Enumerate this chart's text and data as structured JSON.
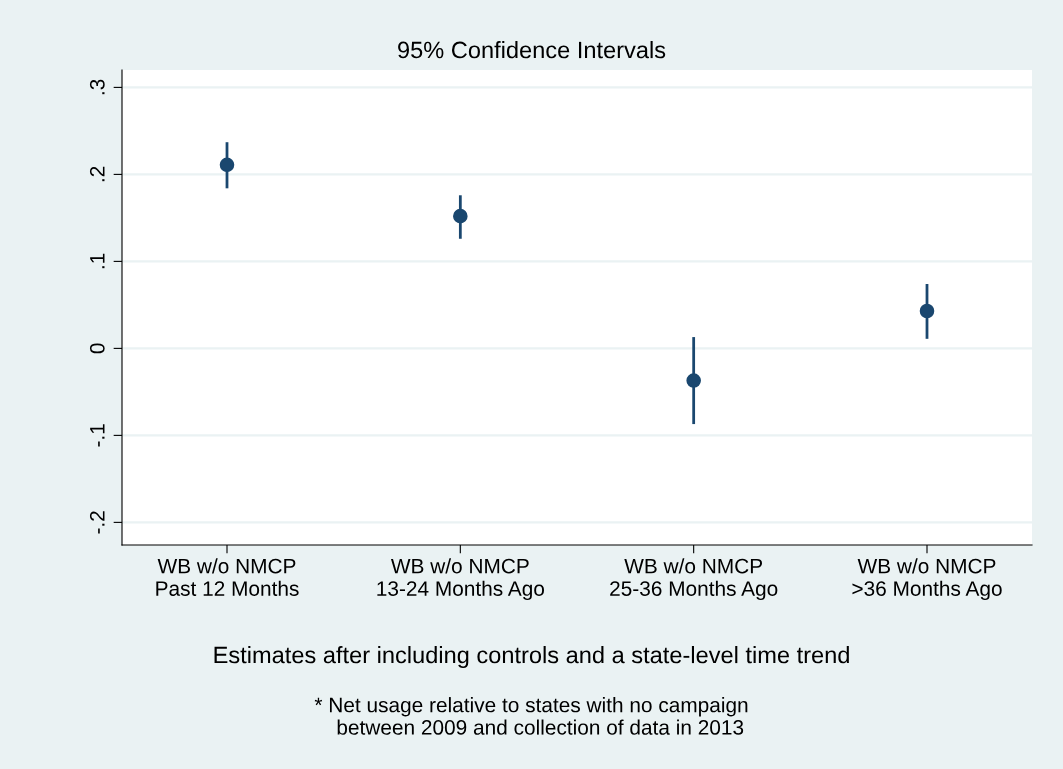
{
  "chart_data": {
    "type": "scatter",
    "title": "95% Confidence Intervals",
    "xlabel": "Estimates after including controls and a state-level time trend",
    "categories": [
      "WB w/o NMCP\nPast 12 Months",
      "WB w/o NMCP\n13-24 Months Ago",
      "WB w/o NMCP\n25-36 Months Ago",
      "WB w/o NMCP\n>36 Months Ago"
    ],
    "series": [
      {
        "color": "#1a476f",
        "values": [
          0.211,
          0.152,
          -0.037,
          0.043
        ],
        "errors": [
          [
            0.184,
            0.237
          ],
          [
            0.126,
            0.176
          ],
          [
            -0.087,
            0.013
          ],
          [
            0.011,
            0.074
          ]
        ]
      }
    ],
    "ylim": [
      -0.226,
      0.32
    ],
    "yticks": [
      {
        "value": -0.2,
        "label": "-.2"
      },
      {
        "value": -0.1,
        "label": "-.1"
      },
      0,
      {
        "value": 0.1,
        "label": ".1"
      },
      {
        "value": 0.2,
        "label": ".2"
      },
      {
        "value": 0.3,
        "label": ".3"
      }
    ],
    "grid": "y",
    "marker": "circle",
    "annotations": [
      "* Net usage relative to states with no campaign\n   between 2009 and collection of data in 2013"
    ]
  }
}
